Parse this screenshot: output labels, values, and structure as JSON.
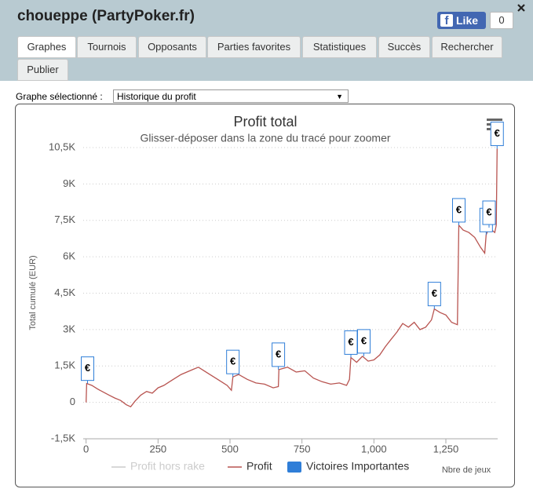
{
  "header": {
    "title": "choueppe (PartyPoker.fr)",
    "like_label": "Like",
    "like_count": "0"
  },
  "tabs": [
    "Graphes",
    "Tournois",
    "Opposants",
    "Parties favorites",
    "Statistiques",
    "Succès",
    "Rechercher",
    "Publier"
  ],
  "active_tab": 0,
  "selector": {
    "label": "Graphe sélectionné :",
    "value": "Historique du profit"
  },
  "chart_data": {
    "type": "line",
    "title": "Profit total",
    "subtitle": "Glisser-déposer dans la zone du tracé pour zoomer",
    "y_label": "Total cumulé (EUR)",
    "x_label": "Nbre de jeux",
    "xlim": [
      -10,
      1430
    ],
    "ylim": [
      -1500,
      10500
    ],
    "xticks": [
      0,
      250,
      500,
      750,
      {
        "value": 1000,
        "label": "1,000"
      },
      {
        "value": 1250,
        "label": "1,250"
      }
    ],
    "yticks": [
      {
        "value": -1500,
        "label": "-1,5K"
      },
      0,
      {
        "value": 1500,
        "label": "1,5K"
      },
      {
        "value": 3000,
        "label": "3K"
      },
      {
        "value": 4500,
        "label": "4,5K"
      },
      {
        "value": 6000,
        "label": "6K"
      },
      {
        "value": 7500,
        "label": "7,5K"
      },
      {
        "value": 9000,
        "label": "9K"
      },
      {
        "value": 10500,
        "label": "10,5K"
      }
    ],
    "grid": true,
    "series": [
      {
        "name": "Profit hors rake",
        "color": "#cccccc",
        "visible": false
      },
      {
        "name": "Profit",
        "color": "#b85450",
        "visible": true,
        "x": [
          0,
          2,
          20,
          40,
          60,
          80,
          100,
          120,
          140,
          155,
          170,
          190,
          210,
          230,
          250,
          270,
          290,
          310,
          330,
          350,
          370,
          390,
          410,
          430,
          450,
          470,
          490,
          505,
          510,
          530,
          560,
          590,
          620,
          650,
          668,
          670,
          700,
          730,
          760,
          790,
          820,
          850,
          880,
          905,
          915,
          920,
          940,
          960,
          980,
          1000,
          1020,
          1040,
          1060,
          1080,
          1100,
          1120,
          1140,
          1160,
          1180,
          1200,
          1210,
          1230,
          1250,
          1270,
          1290,
          1295,
          1310,
          1330,
          1350,
          1370,
          1385,
          1390,
          1400,
          1410,
          1420,
          1425,
          1428
        ],
        "values": [
          0,
          780,
          700,
          550,
          420,
          300,
          180,
          80,
          -100,
          -180,
          50,
          300,
          450,
          380,
          600,
          700,
          850,
          1000,
          1150,
          1250,
          1350,
          1450,
          1300,
          1150,
          1000,
          850,
          700,
          500,
          1050,
          1150,
          950,
          800,
          750,
          600,
          650,
          1350,
          1450,
          1250,
          1300,
          1000,
          850,
          750,
          800,
          700,
          950,
          1850,
          1650,
          1900,
          1700,
          1750,
          1950,
          2300,
          2600,
          2900,
          3250,
          3100,
          3300,
          3000,
          3100,
          3400,
          3850,
          3700,
          3600,
          3300,
          3200,
          7300,
          7100,
          7000,
          6800,
          6400,
          6150,
          6900,
          7200,
          7100,
          7000,
          7300,
          10450
        ]
      },
      {
        "name": "Victoires Importantes",
        "color": "#2f7ed8",
        "visible": true,
        "flag_label": "€",
        "x": [
          5,
          510,
          668,
          920,
          965,
          1210,
          1295,
          1390,
          1400,
          1428
        ],
        "values": [
          775,
          1050,
          1350,
          1850,
          1900,
          3850,
          7300,
          6900,
          7200,
          10450
        ]
      }
    ]
  }
}
